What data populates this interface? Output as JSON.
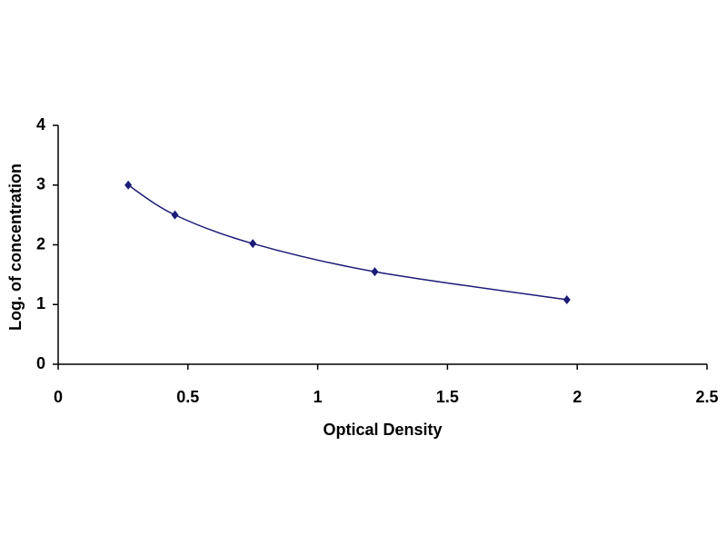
{
  "chart_data": {
    "type": "scatter",
    "x_label": "Optical Density",
    "y_label": "Log. of concentration",
    "x": [
      0.27,
      0.45,
      0.75,
      1.22,
      1.96
    ],
    "values": [
      3.0,
      2.5,
      2.02,
      1.55,
      1.08
    ],
    "color": "#1c1c78",
    "smooth_line": true,
    "xlim": [
      0,
      2.5
    ],
    "xticks": [
      0,
      0.5,
      1,
      1.5,
      2,
      2.5
    ],
    "ylim": [
      0,
      4
    ],
    "yticks": [
      0,
      1,
      2,
      3,
      4
    ],
    "grid": false
  }
}
